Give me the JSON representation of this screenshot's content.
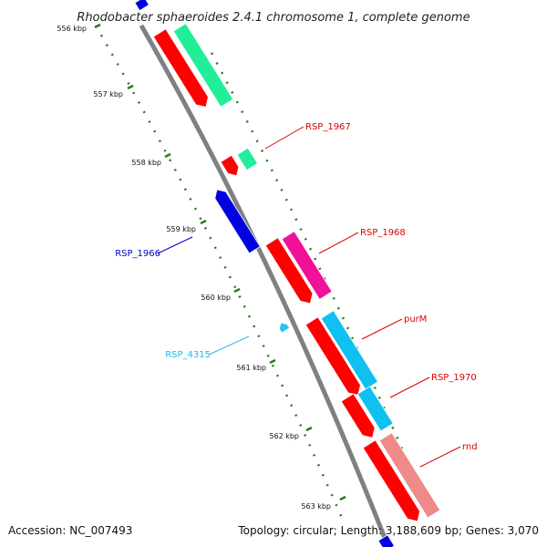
{
  "title": "Rhodobacter sphaeroides 2.4.1 chromosome 1, complete genome",
  "footer": {
    "accession": "Accession: NC_007493",
    "summary": "Topology: circular; Length: 3,188,609 bp; Genes: 3,070"
  },
  "colors": {
    "backbone": "#808080",
    "tick": "#2a7a1e",
    "orf_forward": "#ff0000",
    "orf_reverse": "#0000e0",
    "trna": "#1fc8f0",
    "cog_green": "#22ee99",
    "cog_magenta": "#f0109a",
    "cog_cyan": "#0fc0f0",
    "cog_salmon": "#f08a8a"
  },
  "ticks": [
    {
      "label": "556 kbp"
    },
    {
      "label": "557 kbp"
    },
    {
      "label": "558 kbp"
    },
    {
      "label": "559 kbp"
    },
    {
      "label": "560 kbp"
    },
    {
      "label": "561 kbp"
    },
    {
      "label": "562 kbp"
    },
    {
      "label": "563 kbp"
    }
  ],
  "gene_labels": [
    {
      "label": "RSP_1967",
      "color": "#dd0000"
    },
    {
      "label": "RSP_1968",
      "color": "#dd0000"
    },
    {
      "label": "RSP_1966",
      "color": "#0000cc"
    },
    {
      "label": "purM",
      "color": "#dd0000"
    },
    {
      "label": "RSP_4315",
      "color": "#22b8e8"
    },
    {
      "label": "RSP_1970",
      "color": "#dd0000"
    },
    {
      "label": "rnd",
      "color": "#dd0000"
    }
  ]
}
